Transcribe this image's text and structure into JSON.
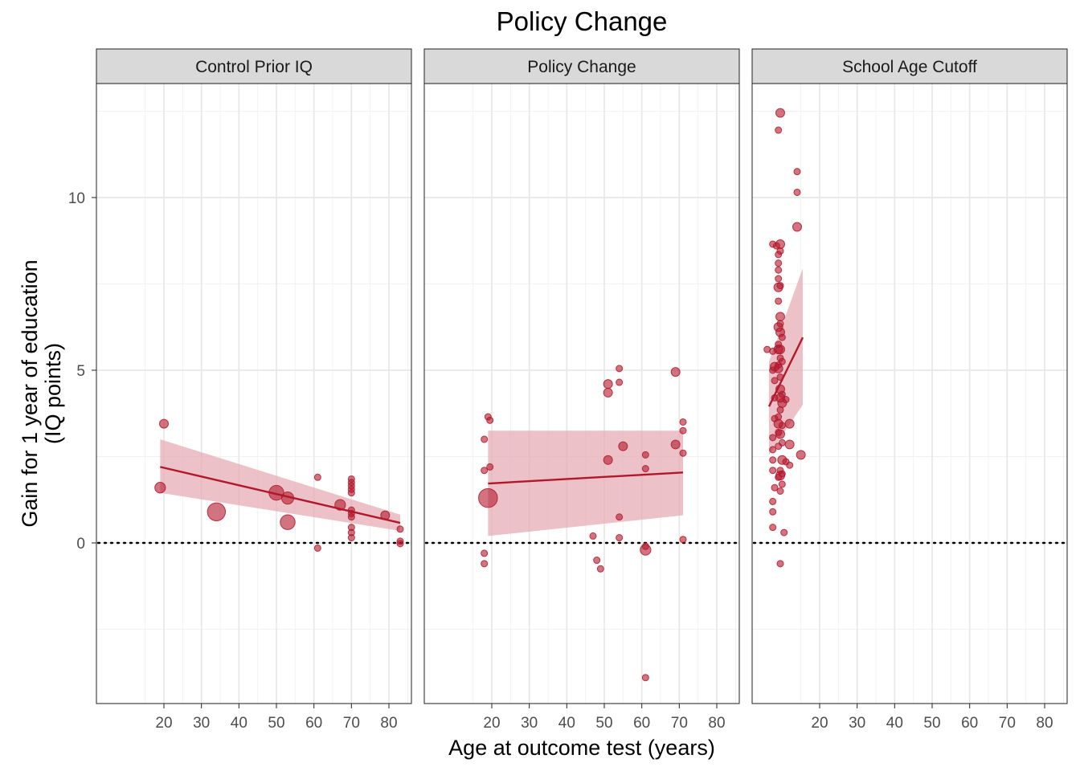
{
  "chart_data": {
    "type": "scatter",
    "title": "Policy Change",
    "xlabel": "Age at outcome test (years)",
    "ylabel_lines": [
      "Gain for 1 year of education",
      "(IQ points)"
    ],
    "xlim": [
      2,
      86
    ],
    "ylim": [
      -4.65,
      13.3
    ],
    "x_ticks": [
      20,
      30,
      40,
      50,
      60,
      70,
      80
    ],
    "y_ticks": [
      0,
      5,
      10
    ],
    "reference_line_y": 0,
    "colors": {
      "point": "#b2182b",
      "line": "#b2182b",
      "ribbon": "#e6a7b1"
    },
    "panels": [
      {
        "name": "Control Prior IQ",
        "points": [
          {
            "x": 20,
            "y": 3.45,
            "w": 2
          },
          {
            "x": 19,
            "y": 1.6,
            "w": 3
          },
          {
            "x": 34,
            "y": 0.9,
            "w": 9
          },
          {
            "x": 50,
            "y": 1.45,
            "w": 6
          },
          {
            "x": 53,
            "y": 1.3,
            "w": 4
          },
          {
            "x": 53,
            "y": 0.6,
            "w": 6
          },
          {
            "x": 61,
            "y": 1.9,
            "w": 1
          },
          {
            "x": 61,
            "y": -0.15,
            "w": 1
          },
          {
            "x": 67,
            "y": 1.1,
            "w": 3
          },
          {
            "x": 70,
            "y": 1.85,
            "w": 1
          },
          {
            "x": 70,
            "y": 1.75,
            "w": 1
          },
          {
            "x": 70,
            "y": 1.65,
            "w": 1
          },
          {
            "x": 70,
            "y": 1.55,
            "w": 1
          },
          {
            "x": 70,
            "y": 1.45,
            "w": 1
          },
          {
            "x": 70,
            "y": 0.95,
            "w": 1
          },
          {
            "x": 70,
            "y": 0.85,
            "w": 1
          },
          {
            "x": 70,
            "y": 0.75,
            "w": 1
          },
          {
            "x": 70,
            "y": 0.45,
            "w": 1
          },
          {
            "x": 70,
            "y": 0.3,
            "w": 1
          },
          {
            "x": 70,
            "y": 0.15,
            "w": 1
          },
          {
            "x": 79,
            "y": 0.8,
            "w": 2
          },
          {
            "x": 83,
            "y": 0.4,
            "w": 1
          },
          {
            "x": 83,
            "y": 0.05,
            "w": 1
          },
          {
            "x": 83,
            "y": -0.02,
            "w": 1
          }
        ],
        "fit": {
          "x": [
            19,
            83
          ],
          "y": [
            2.2,
            0.58
          ],
          "lower": [
            1.45,
            0.35
          ],
          "upper": [
            3.0,
            0.82
          ]
        }
      },
      {
        "name": "Policy Change",
        "points": [
          {
            "x": 19,
            "y": 3.65,
            "w": 1
          },
          {
            "x": 19.5,
            "y": 3.55,
            "w": 1
          },
          {
            "x": 18,
            "y": 3.0,
            "w": 1
          },
          {
            "x": 18,
            "y": 2.1,
            "w": 1
          },
          {
            "x": 19.5,
            "y": 2.2,
            "w": 1
          },
          {
            "x": 19,
            "y": 1.3,
            "w": 10
          },
          {
            "x": 18,
            "y": -0.3,
            "w": 1
          },
          {
            "x": 18,
            "y": -0.6,
            "w": 1
          },
          {
            "x": 47,
            "y": 0.2,
            "w": 1
          },
          {
            "x": 48,
            "y": -0.5,
            "w": 1
          },
          {
            "x": 49,
            "y": -0.75,
            "w": 1
          },
          {
            "x": 51,
            "y": 2.4,
            "w": 2
          },
          {
            "x": 51,
            "y": 4.6,
            "w": 2
          },
          {
            "x": 51,
            "y": 4.35,
            "w": 2
          },
          {
            "x": 54,
            "y": 5.05,
            "w": 1
          },
          {
            "x": 54,
            "y": 4.65,
            "w": 1
          },
          {
            "x": 55,
            "y": 2.8,
            "w": 2
          },
          {
            "x": 54,
            "y": 0.75,
            "w": 1
          },
          {
            "x": 54,
            "y": 0.15,
            "w": 1
          },
          {
            "x": 61,
            "y": -0.1,
            "w": 1
          },
          {
            "x": 61,
            "y": -0.2,
            "w": 3
          },
          {
            "x": 61,
            "y": 2.55,
            "w": 1
          },
          {
            "x": 61,
            "y": 2.15,
            "w": 1
          },
          {
            "x": 61,
            "y": -3.9,
            "w": 1
          },
          {
            "x": 69,
            "y": 4.95,
            "w": 2
          },
          {
            "x": 69,
            "y": 2.85,
            "w": 2
          },
          {
            "x": 71,
            "y": 3.5,
            "w": 1
          },
          {
            "x": 71,
            "y": 3.25,
            "w": 1
          },
          {
            "x": 71,
            "y": 2.6,
            "w": 1
          },
          {
            "x": 71,
            "y": 0.1,
            "w": 1
          }
        ],
        "fit": {
          "x": [
            19,
            71
          ],
          "y": [
            1.72,
            2.04
          ],
          "lower": [
            0.2,
            0.8
          ],
          "upper": [
            3.25,
            3.25
          ]
        }
      },
      {
        "name": "School Age Cutoff",
        "points": [
          {
            "x": 9.5,
            "y": 12.45,
            "w": 2
          },
          {
            "x": 9,
            "y": 11.95,
            "w": 1
          },
          {
            "x": 14,
            "y": 10.75,
            "w": 1
          },
          {
            "x": 14,
            "y": 10.15,
            "w": 1
          },
          {
            "x": 14,
            "y": 9.15,
            "w": 2
          },
          {
            "x": 7.5,
            "y": 8.65,
            "w": 1
          },
          {
            "x": 8.5,
            "y": 8.6,
            "w": 1
          },
          {
            "x": 9.5,
            "y": 8.65,
            "w": 2
          },
          {
            "x": 9.5,
            "y": 8.45,
            "w": 1
          },
          {
            "x": 9,
            "y": 8.35,
            "w": 1
          },
          {
            "x": 9,
            "y": 8.1,
            "w": 1
          },
          {
            "x": 9,
            "y": 7.9,
            "w": 1
          },
          {
            "x": 9,
            "y": 7.65,
            "w": 1
          },
          {
            "x": 9,
            "y": 7.4,
            "w": 2
          },
          {
            "x": 9.5,
            "y": 7.45,
            "w": 1
          },
          {
            "x": 9,
            "y": 7.0,
            "w": 1
          },
          {
            "x": 9.5,
            "y": 6.55,
            "w": 2
          },
          {
            "x": 9.5,
            "y": 6.35,
            "w": 1
          },
          {
            "x": 9,
            "y": 6.25,
            "w": 2
          },
          {
            "x": 9.5,
            "y": 6.1,
            "w": 2
          },
          {
            "x": 10,
            "y": 5.95,
            "w": 1
          },
          {
            "x": 9,
            "y": 5.75,
            "w": 1
          },
          {
            "x": 9,
            "y": 5.6,
            "w": 2
          },
          {
            "x": 9.5,
            "y": 5.6,
            "w": 2
          },
          {
            "x": 6,
            "y": 5.6,
            "w": 1
          },
          {
            "x": 7.5,
            "y": 5.55,
            "w": 1
          },
          {
            "x": 9.5,
            "y": 5.35,
            "w": 1
          },
          {
            "x": 10,
            "y": 5.25,
            "w": 1
          },
          {
            "x": 8,
            "y": 5.1,
            "w": 2
          },
          {
            "x": 9,
            "y": 5.15,
            "w": 1
          },
          {
            "x": 9,
            "y": 5.05,
            "w": 2
          },
          {
            "x": 7.5,
            "y": 5.0,
            "w": 1
          },
          {
            "x": 9.5,
            "y": 4.8,
            "w": 1
          },
          {
            "x": 8,
            "y": 4.7,
            "w": 1
          },
          {
            "x": 9.5,
            "y": 4.45,
            "w": 2
          },
          {
            "x": 10,
            "y": 4.3,
            "w": 1
          },
          {
            "x": 8,
            "y": 4.2,
            "w": 1
          },
          {
            "x": 9.5,
            "y": 4.2,
            "w": 2
          },
          {
            "x": 11,
            "y": 4.15,
            "w": 1
          },
          {
            "x": 10,
            "y": 4.05,
            "w": 2
          },
          {
            "x": 9.5,
            "y": 3.85,
            "w": 1
          },
          {
            "x": 9,
            "y": 3.65,
            "w": 1
          },
          {
            "x": 8,
            "y": 3.6,
            "w": 1
          },
          {
            "x": 9,
            "y": 3.45,
            "w": 2
          },
          {
            "x": 10,
            "y": 3.4,
            "w": 1
          },
          {
            "x": 12,
            "y": 3.45,
            "w": 2
          },
          {
            "x": 9,
            "y": 3.2,
            "w": 1
          },
          {
            "x": 9.5,
            "y": 3.15,
            "w": 2
          },
          {
            "x": 7.5,
            "y": 3.05,
            "w": 1
          },
          {
            "x": 10,
            "y": 2.9,
            "w": 1
          },
          {
            "x": 12,
            "y": 2.85,
            "w": 2
          },
          {
            "x": 9,
            "y": 2.8,
            "w": 1
          },
          {
            "x": 7.5,
            "y": 2.7,
            "w": 1
          },
          {
            "x": 15,
            "y": 2.55,
            "w": 2
          },
          {
            "x": 7.5,
            "y": 2.4,
            "w": 1
          },
          {
            "x": 10,
            "y": 2.4,
            "w": 2
          },
          {
            "x": 11,
            "y": 2.35,
            "w": 1
          },
          {
            "x": 12,
            "y": 2.25,
            "w": 1
          },
          {
            "x": 7.5,
            "y": 2.1,
            "w": 1
          },
          {
            "x": 9.5,
            "y": 2.1,
            "w": 1
          },
          {
            "x": 10,
            "y": 2.0,
            "w": 1
          },
          {
            "x": 9.5,
            "y": 1.95,
            "w": 2
          },
          {
            "x": 9,
            "y": 1.9,
            "w": 1
          },
          {
            "x": 10,
            "y": 1.7,
            "w": 1
          },
          {
            "x": 8,
            "y": 1.6,
            "w": 1
          },
          {
            "x": 9.5,
            "y": 1.5,
            "w": 1
          },
          {
            "x": 7.5,
            "y": 1.2,
            "w": 1
          },
          {
            "x": 7.5,
            "y": 0.9,
            "w": 1
          },
          {
            "x": 7.5,
            "y": 0.45,
            "w": 1
          },
          {
            "x": 10.5,
            "y": 0.3,
            "w": 1
          },
          {
            "x": 9.5,
            "y": -0.6,
            "w": 1
          }
        ],
        "fit": {
          "x": [
            6.5,
            15.5
          ],
          "y": [
            3.95,
            5.95
          ],
          "lower": [
            2.55,
            4.0
          ],
          "upper": [
            5.25,
            7.95
          ]
        }
      }
    ]
  }
}
